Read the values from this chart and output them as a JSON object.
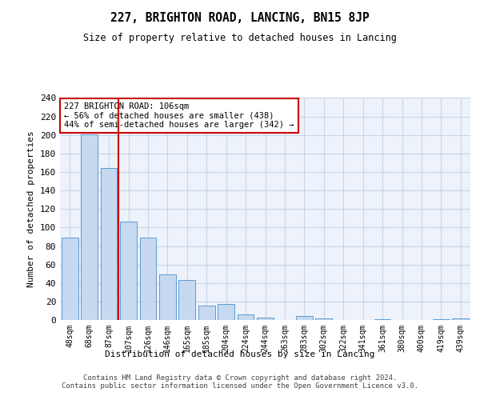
{
  "title": "227, BRIGHTON ROAD, LANCING, BN15 8JP",
  "subtitle": "Size of property relative to detached houses in Lancing",
  "xlabel": "Distribution of detached houses by size in Lancing",
  "ylabel": "Number of detached properties",
  "bar_labels": [
    "48sqm",
    "68sqm",
    "87sqm",
    "107sqm",
    "126sqm",
    "146sqm",
    "165sqm",
    "185sqm",
    "204sqm",
    "224sqm",
    "244sqm",
    "263sqm",
    "283sqm",
    "302sqm",
    "322sqm",
    "341sqm",
    "361sqm",
    "380sqm",
    "400sqm",
    "419sqm",
    "439sqm"
  ],
  "bar_values": [
    89,
    201,
    164,
    106,
    89,
    49,
    43,
    16,
    17,
    6,
    3,
    0,
    4,
    2,
    0,
    0,
    1,
    0,
    0,
    1,
    2
  ],
  "bar_color": "#c6d9f0",
  "bar_edge_color": "#5b9bd5",
  "grid_color": "#c8d4e8",
  "background_color": "#eef2fa",
  "vline_x_index": 2.5,
  "vline_color": "#cc0000",
  "annotation_text": "227 BRIGHTON ROAD: 106sqm\n← 56% of detached houses are smaller (438)\n44% of semi-detached houses are larger (342) →",
  "annotation_box_color": "#ffffff",
  "annotation_box_edge": "#cc0000",
  "footer_text": "Contains HM Land Registry data © Crown copyright and database right 2024.\nContains public sector information licensed under the Open Government Licence v3.0.",
  "ylim": [
    0,
    240
  ],
  "yticks": [
    0,
    20,
    40,
    60,
    80,
    100,
    120,
    140,
    160,
    180,
    200,
    220,
    240
  ]
}
